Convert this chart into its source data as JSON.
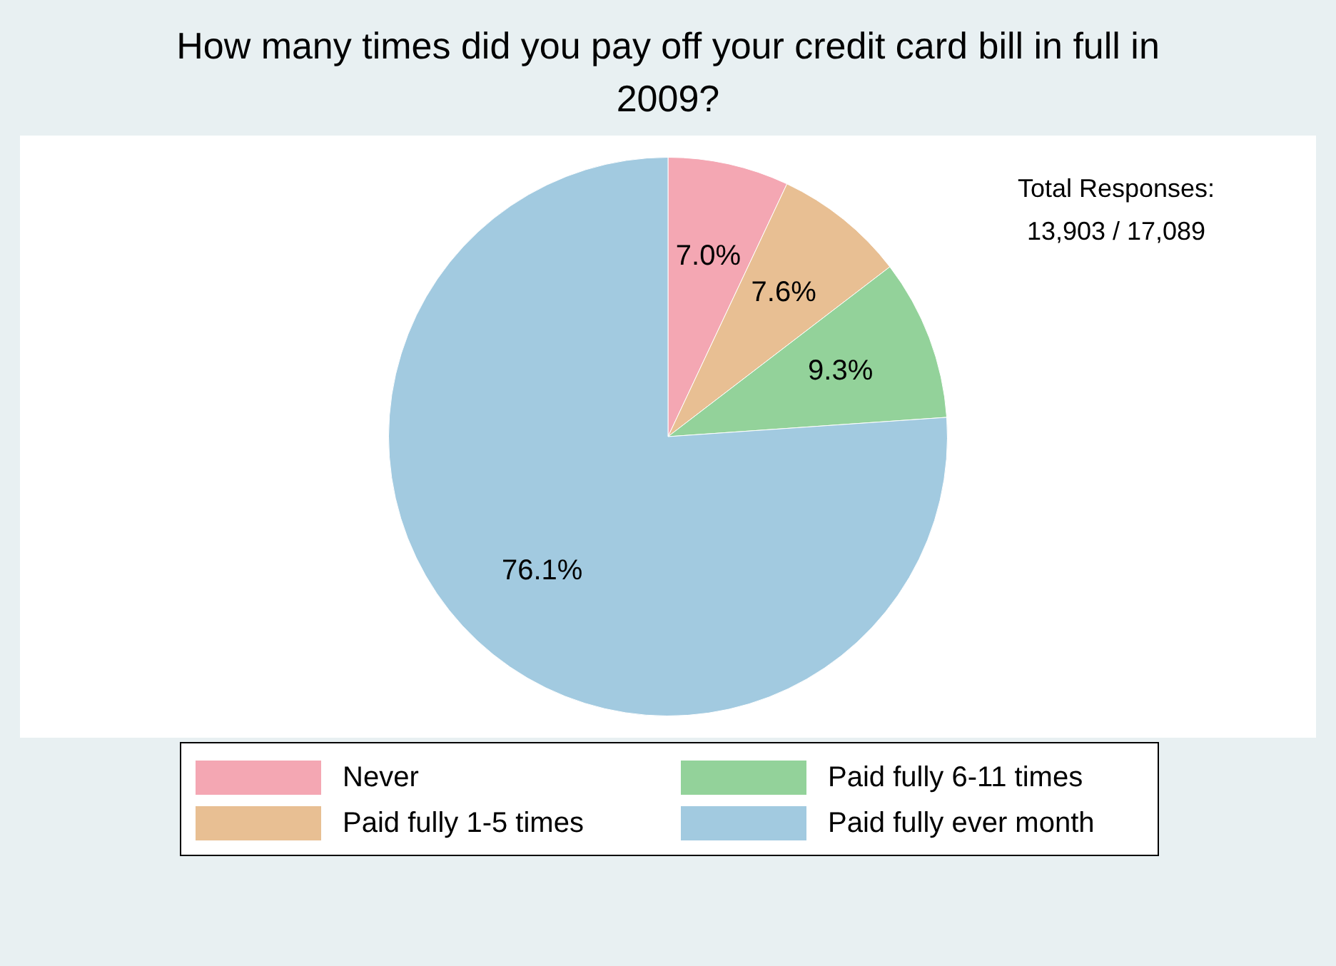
{
  "chart_data": {
    "type": "pie",
    "title": "How many times did you pay off your credit card bill in full in 2009?",
    "categories": [
      "Never",
      "Paid fully 1-5 times",
      "Paid fully 6-11 times",
      "Paid fully ever month"
    ],
    "values": [
      7.0,
      7.6,
      9.3,
      76.1
    ],
    "colors": [
      "#f4a7b3",
      "#e8bf93",
      "#93d29a",
      "#a2cae0"
    ],
    "value_labels": [
      "7.0%",
      "7.6%",
      "9.3%",
      "76.1%"
    ],
    "legend": "bottom",
    "annotations": [
      "Total Responses:\n13,903 / 17,089"
    ]
  }
}
